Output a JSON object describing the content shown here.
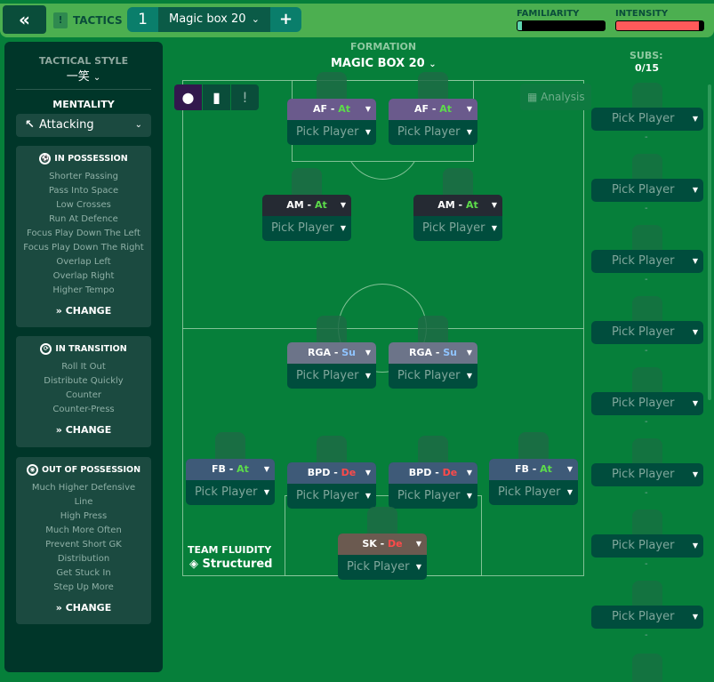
{
  "header": {
    "back_icon": "double-chevron-left",
    "tactics_label": "TACTICS",
    "tactic_slot": "1",
    "tactic_name": "Magic box 20",
    "add_label": "+",
    "familiarity_label": "FAMILIARITY",
    "familiarity_level": 0.05,
    "intensity_label": "INTENSITY",
    "intensity_level": 0.95,
    "familiarity_color": "#5fd6b0",
    "intensity_color": "#ff5a5a"
  },
  "sidebar": {
    "tactical_style_label": "TACTICAL STYLE",
    "tactical_style": "一笑",
    "mentality_label": "MENTALITY",
    "mentality": "Attacking",
    "in_possession": {
      "title": "IN POSSESSION",
      "items": [
        "Shorter Passing",
        "Pass Into Space",
        "Low Crosses",
        "Run At Defence",
        "Focus Play Down The Left",
        "Focus Play Down The Right",
        "Overlap Left",
        "Overlap Right",
        "Higher Tempo"
      ],
      "change": "CHANGE"
    },
    "in_transition": {
      "title": "IN TRANSITION",
      "items": [
        "Roll It Out",
        "Distribute Quickly",
        "Counter",
        "Counter-Press"
      ],
      "change": "CHANGE"
    },
    "out_of_possession": {
      "title": "OUT OF POSSESSION",
      "items": [
        "Much Higher Defensive",
        "Line",
        "High Press",
        "Much More Often",
        "Prevent Short GK",
        "Distribution",
        "Get Stuck In",
        "Step Up More"
      ],
      "change": "CHANGE"
    }
  },
  "formation": {
    "label": "FORMATION",
    "name": "MAGIC BOX 20",
    "analysis": "Analysis",
    "team_fluidity_label": "TEAM FLUIDITY",
    "team_fluidity": "Structured"
  },
  "positions": [
    {
      "role": "AF",
      "duty": "At",
      "player": "Pick Player",
      "color": "#6a5a8c"
    },
    {
      "role": "AF",
      "duty": "At",
      "player": "Pick Player",
      "color": "#6a5a8c"
    },
    {
      "role": "AM",
      "duty": "At",
      "player": "Pick Player",
      "color": "#252a33"
    },
    {
      "role": "AM",
      "duty": "At",
      "player": "Pick Player",
      "color": "#252a33"
    },
    {
      "role": "RGA",
      "duty": "Su",
      "player": "Pick Player",
      "color": "#6c7489"
    },
    {
      "role": "RGA",
      "duty": "Su",
      "player": "Pick Player",
      "color": "#6c7489"
    },
    {
      "role": "FB",
      "duty": "At",
      "player": "Pick Player",
      "color": "#3e5a78"
    },
    {
      "role": "BPD",
      "duty": "De",
      "player": "Pick Player",
      "color": "#3e5a78"
    },
    {
      "role": "BPD",
      "duty": "De",
      "player": "Pick Player",
      "color": "#3e5a78"
    },
    {
      "role": "FB",
      "duty": "At",
      "player": "Pick Player",
      "color": "#3e5a78"
    },
    {
      "role": "SK",
      "duty": "De",
      "player": "Pick Player",
      "color": "#6b5a50"
    }
  ],
  "duty_colors": {
    "At": "#5cdc4a",
    "Su": "#8fc4ff",
    "De": "#ff4a4a"
  },
  "subs": {
    "label": "SUBS:",
    "count": "0/15",
    "slots": [
      "Pick Player",
      "Pick Player",
      "Pick Player",
      "Pick Player",
      "Pick Player",
      "Pick Player",
      "Pick Player",
      "Pick Player"
    ],
    "empty": "-"
  }
}
